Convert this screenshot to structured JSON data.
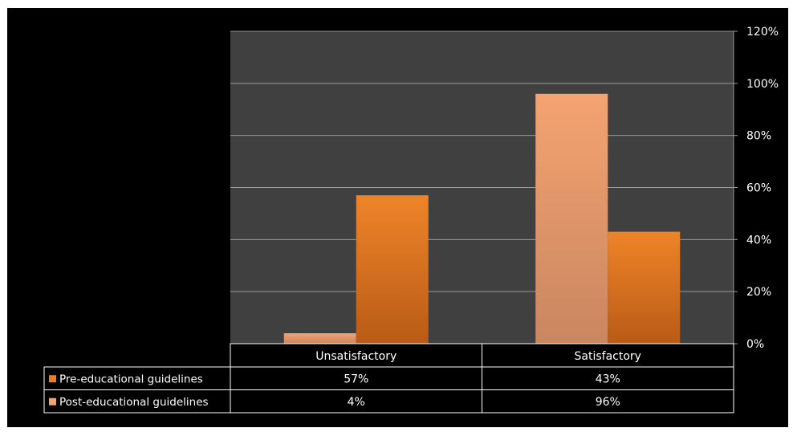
{
  "chart_data": {
    "type": "bar",
    "categories": [
      "Unsatisfactory",
      "Satisfactory"
    ],
    "series": [
      {
        "name": "Post-educational guidelines",
        "values": [
          4,
          96
        ],
        "color": "#f4a371",
        "color_bottom": "#c98660"
      },
      {
        "name": "Pre-educational guidelines",
        "values": [
          57,
          43
        ],
        "color": "#ee8429",
        "color_bottom": "#b95b16"
      }
    ],
    "table_rows": [
      {
        "name": "Pre-educational guidelines",
        "cells": [
          "57%",
          "43%"
        ],
        "swatch": "#ee7d24"
      },
      {
        "name": "Post-educational guidelines",
        "cells": [
          "4%",
          "96%"
        ],
        "swatch": "#f4a371"
      }
    ],
    "yaxis": {
      "position": "right",
      "ticks": [
        "0%",
        "20%",
        "40%",
        "60%",
        "80%",
        "100%",
        "120%"
      ],
      "ylim": [
        0,
        120
      ]
    },
    "grid": true,
    "legend": "data-table",
    "colors": {
      "background": "#000000",
      "plot_area": "#404040",
      "gridline": "#9a9a9a",
      "text": "#ffffff",
      "table_border": "#ffffff"
    }
  }
}
